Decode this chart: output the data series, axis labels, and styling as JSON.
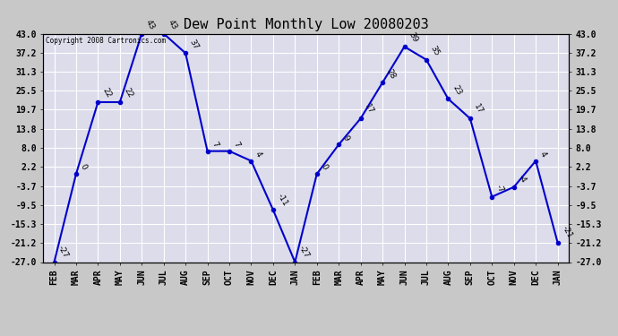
{
  "title": "Dew Point Monthly Low 20080203",
  "copyright": "Copyright 2008 Cartronics.com",
  "months": [
    "FEB",
    "MAR",
    "APR",
    "MAY",
    "JUN",
    "JUL",
    "AUG",
    "SEP",
    "OCT",
    "NOV",
    "DEC",
    "JAN",
    "FEB",
    "MAR",
    "APR",
    "MAY",
    "JUN",
    "JUL",
    "AUG",
    "SEP",
    "OCT",
    "NOV",
    "DEC",
    "JAN"
  ],
  "values": [
    -27,
    0,
    22,
    22,
    43,
    43,
    37,
    7,
    7,
    4,
    -11,
    -27,
    0,
    9,
    17,
    28,
    39,
    35,
    23,
    17,
    -7,
    -4,
    4,
    -21
  ],
  "ylim": [
    -27.0,
    43.0
  ],
  "yticks": [
    43.0,
    37.2,
    31.3,
    25.5,
    19.7,
    13.8,
    8.0,
    2.2,
    -3.7,
    -9.5,
    -15.3,
    -21.2,
    -27.0
  ],
  "line_color": "#0000cc",
  "marker_color": "#0000cc",
  "bg_color": "#dcdceb",
  "grid_color": "#ffffff",
  "outer_bg": "#c8c8c8",
  "title_fontsize": 11,
  "label_fontsize": 7,
  "annot_fontsize": 6.5
}
